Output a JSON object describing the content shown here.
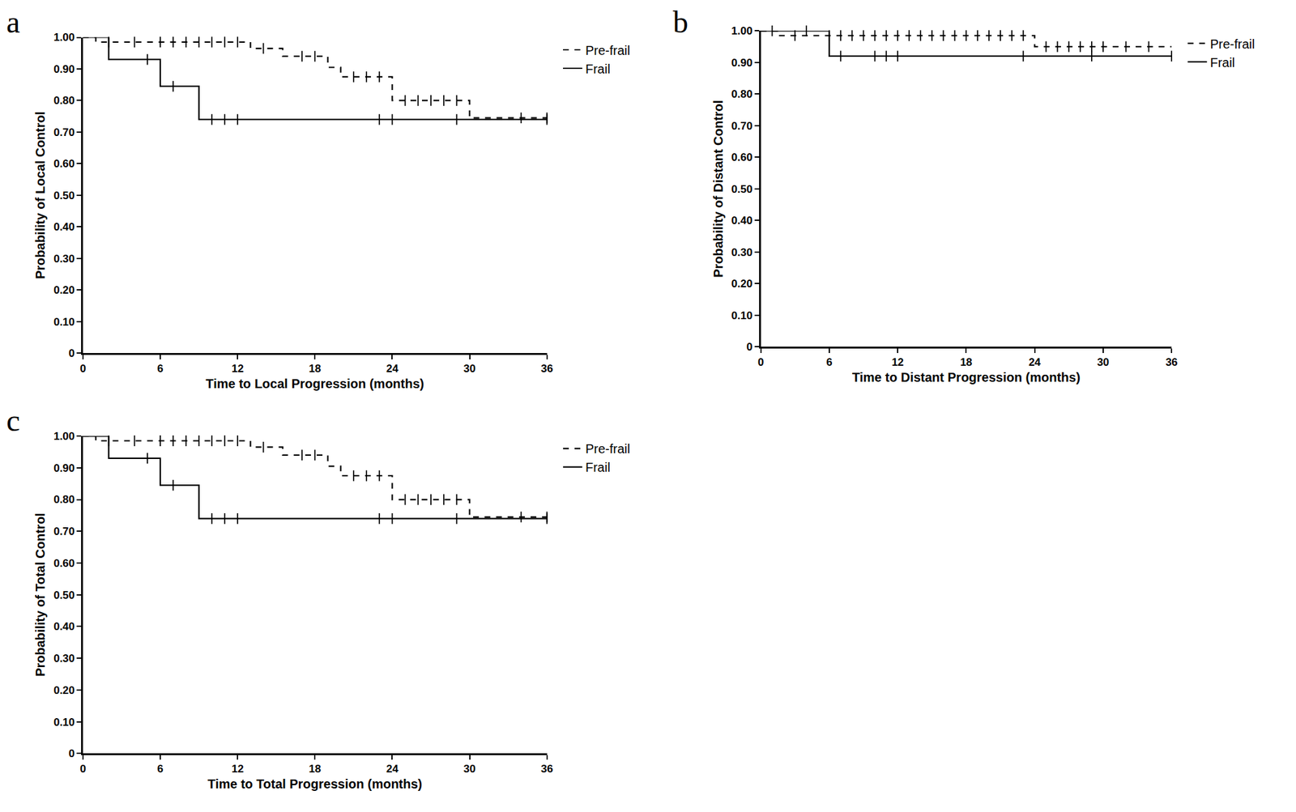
{
  "chart_data": [
    {
      "type": "line",
      "annotations": [
        "a"
      ],
      "x_label": "Time to Local Progression (months)",
      "y_label": "Probability of Local Control",
      "xlim": [
        0,
        36
      ],
      "xticks": [
        0,
        6,
        12,
        18,
        24,
        30,
        36
      ],
      "ylim": [
        0,
        1
      ],
      "yticks": [
        0,
        {
          "value": 0.1,
          "label": "0.10"
        },
        {
          "value": 0.2,
          "label": "0.20"
        },
        {
          "value": 0.3,
          "label": "0.30"
        },
        {
          "value": 0.4,
          "label": "0.40"
        },
        {
          "value": 0.5,
          "label": "0.50"
        },
        {
          "value": 0.6,
          "label": "0.60"
        },
        {
          "value": 0.7,
          "label": "0.70"
        },
        {
          "value": 0.8,
          "label": "0.80"
        },
        {
          "value": 0.9,
          "label": "0.90"
        },
        {
          "value": 1,
          "label": "1.00"
        }
      ],
      "grid": false,
      "legend": "top right",
      "series": [
        {
          "name": "Pre-frail",
          "color": "#000000",
          "line_style": "dashed",
          "marker": "tick",
          "x": [
            0,
            1,
            13,
            15.5,
            19,
            20,
            24,
            30,
            36
          ],
          "values": [
            1,
            0.985,
            0.965,
            0.94,
            0.905,
            0.875,
            0.8,
            0.745,
            0.745
          ],
          "censored": {
            "x": [
              2,
              4,
              6,
              7,
              8,
              9,
              10,
              11,
              12,
              14,
              17,
              18,
              21,
              22,
              23,
              25,
              26,
              27,
              28,
              29,
              34,
              36
            ],
            "values": [
              0.985,
              0.985,
              0.985,
              0.985,
              0.985,
              0.985,
              0.985,
              0.985,
              0.985,
              0.965,
              0.94,
              0.94,
              0.875,
              0.875,
              0.875,
              0.8,
              0.8,
              0.8,
              0.8,
              0.8,
              0.745,
              0.745
            ]
          }
        },
        {
          "name": "Frail",
          "color": "#000000",
          "line_style": "solid",
          "marker": "tick",
          "x": [
            0,
            2,
            6,
            9,
            36
          ],
          "values": [
            1,
            0.93,
            0.845,
            0.74,
            0.74
          ],
          "censored": {
            "x": [
              5,
              7,
              10,
              11,
              12,
              23,
              24,
              29,
              36
            ],
            "values": [
              0.93,
              0.845,
              0.74,
              0.74,
              0.74,
              0.74,
              0.74,
              0.74,
              0.74
            ]
          }
        }
      ]
    },
    {
      "type": "line",
      "annotations": [
        "b"
      ],
      "x_label": "Time to Distant Progression (months)",
      "y_label": "Probability of Distant Control",
      "xlim": [
        0,
        36
      ],
      "xticks": [
        0,
        6,
        12,
        18,
        24,
        30,
        36
      ],
      "ylim": [
        0,
        1
      ],
      "yticks": [
        0,
        {
          "value": 0.1,
          "label": "0.10"
        },
        {
          "value": 0.2,
          "label": "0.20"
        },
        {
          "value": 0.3,
          "label": "0.30"
        },
        {
          "value": 0.4,
          "label": "0.40"
        },
        {
          "value": 0.5,
          "label": "0.50"
        },
        {
          "value": 0.6,
          "label": "0.60"
        },
        {
          "value": 0.7,
          "label": "0.70"
        },
        {
          "value": 0.8,
          "label": "0.80"
        },
        {
          "value": 0.9,
          "label": "0.90"
        },
        {
          "value": 1,
          "label": "1.00"
        }
      ],
      "grid": false,
      "legend": "top right",
      "series": [
        {
          "name": "Pre-frail",
          "color": "#000000",
          "line_style": "dashed",
          "marker": "tick",
          "x": [
            0,
            1.5,
            24,
            36
          ],
          "values": [
            1,
            0.985,
            0.95,
            0.95
          ],
          "censored": {
            "x": [
              1,
              3,
              6,
              7,
              8,
              9,
              10,
              11,
              12,
              13,
              14,
              15,
              16,
              17,
              18,
              19,
              20,
              21,
              22,
              23,
              25,
              26,
              27,
              28,
              29,
              30,
              32,
              34
            ],
            "values": [
              1,
              0.985,
              0.985,
              0.985,
              0.985,
              0.985,
              0.985,
              0.985,
              0.985,
              0.985,
              0.985,
              0.985,
              0.985,
              0.985,
              0.985,
              0.985,
              0.985,
              0.985,
              0.985,
              0.985,
              0.95,
              0.95,
              0.95,
              0.95,
              0.95,
              0.95,
              0.95,
              0.95
            ]
          }
        },
        {
          "name": "Frail",
          "color": "#000000",
          "line_style": "solid",
          "marker": "tick",
          "x": [
            0,
            6,
            36
          ],
          "values": [
            1,
            0.92,
            0.92
          ],
          "censored": {
            "x": [
              4,
              7,
              10,
              11,
              12,
              23,
              29,
              36
            ],
            "values": [
              1,
              0.92,
              0.92,
              0.92,
              0.92,
              0.92,
              0.92,
              0.92
            ]
          }
        }
      ]
    },
    {
      "type": "line",
      "annotations": [
        "c"
      ],
      "x_label": "Time to Total Progression (months)",
      "y_label": "Probability of Total Control",
      "xlim": [
        0,
        36
      ],
      "xticks": [
        0,
        6,
        12,
        18,
        24,
        30,
        36
      ],
      "ylim": [
        0,
        1
      ],
      "yticks": [
        0,
        {
          "value": 0.1,
          "label": "0.10"
        },
        {
          "value": 0.2,
          "label": "0.20"
        },
        {
          "value": 0.3,
          "label": "0.30"
        },
        {
          "value": 0.4,
          "label": "0.40"
        },
        {
          "value": 0.5,
          "label": "0.50"
        },
        {
          "value": 0.6,
          "label": "0.60"
        },
        {
          "value": 0.7,
          "label": "0.70"
        },
        {
          "value": 0.8,
          "label": "0.80"
        },
        {
          "value": 0.9,
          "label": "0.90"
        },
        {
          "value": 1,
          "label": "1.00"
        }
      ],
      "grid": false,
      "legend": "top right",
      "series": [
        {
          "name": "Pre-frail",
          "color": "#000000",
          "line_style": "dashed",
          "marker": "tick",
          "x": [
            0,
            1,
            13,
            15.5,
            19,
            20,
            24,
            30,
            36
          ],
          "values": [
            1,
            0.985,
            0.965,
            0.94,
            0.905,
            0.875,
            0.8,
            0.745,
            0.745
          ],
          "censored": {
            "x": [
              2,
              4,
              6,
              7,
              8,
              9,
              10,
              11,
              12,
              14,
              17,
              18,
              21,
              22,
              23,
              25,
              26,
              27,
              28,
              29,
              34,
              36
            ],
            "values": [
              0.985,
              0.985,
              0.985,
              0.985,
              0.985,
              0.985,
              0.985,
              0.985,
              0.985,
              0.965,
              0.94,
              0.94,
              0.875,
              0.875,
              0.875,
              0.8,
              0.8,
              0.8,
              0.8,
              0.8,
              0.745,
              0.745
            ]
          }
        },
        {
          "name": "Frail",
          "color": "#000000",
          "line_style": "solid",
          "marker": "tick",
          "x": [
            0,
            2,
            6,
            9,
            36
          ],
          "values": [
            1,
            0.93,
            0.845,
            0.74,
            0.74
          ],
          "censored": {
            "x": [
              5,
              7,
              10,
              11,
              12,
              23,
              24,
              29,
              36
            ],
            "values": [
              0.93,
              0.845,
              0.74,
              0.74,
              0.74,
              0.74,
              0.74,
              0.74,
              0.74
            ]
          }
        }
      ]
    }
  ]
}
